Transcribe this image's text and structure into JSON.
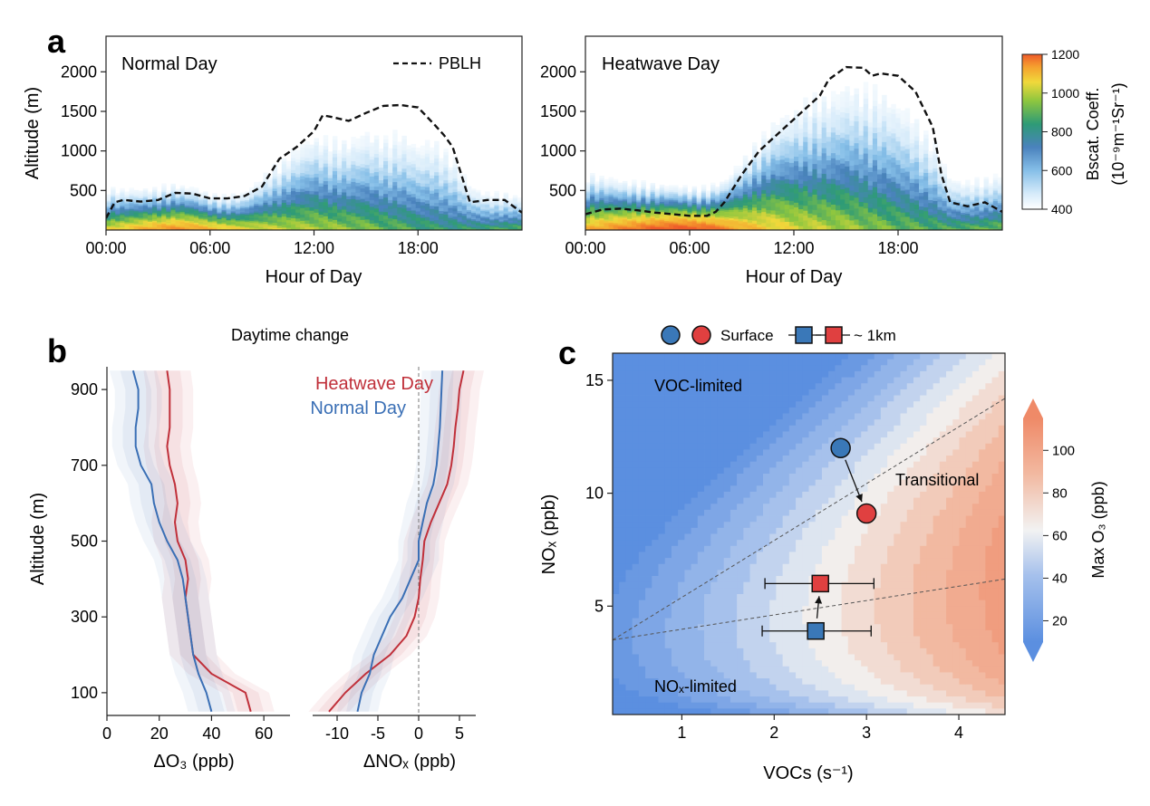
{
  "panel_labels": {
    "a": "a",
    "b": "b",
    "c": "c"
  },
  "colors": {
    "heatwave": "#c0303a",
    "normal": "#3a6fb5",
    "surface_blue": "#3a78b8",
    "surface_red": "#e04040"
  },
  "chart_data": [
    {
      "id": "a_normal",
      "type": "heatmap",
      "panel_text": "Normal Day",
      "xlabel": "Hour of Day",
      "ylabel": "Altitude (m)",
      "xlim": [
        0,
        24
      ],
      "ylim": [
        0,
        2450
      ],
      "x_ticks": [
        0,
        6,
        12,
        18
      ],
      "x_tick_labels": [
        "00:00",
        "06:00",
        "12:00",
        "18:00"
      ],
      "y_ticks": [
        500,
        1000,
        1500,
        2000
      ],
      "y_tick_labels": [
        "500",
        "1000",
        "1500",
        "2000"
      ],
      "legend": [
        {
          "label": "PBLH",
          "style": "dashed"
        }
      ],
      "legend_position": "top-right",
      "pblh": {
        "x": [
          0,
          0.5,
          1,
          2,
          3,
          4,
          5,
          6,
          7,
          8,
          9,
          10,
          11,
          12,
          12.5,
          13,
          14,
          15,
          16,
          17,
          18,
          19,
          19.5,
          20,
          20.5,
          21,
          22,
          23,
          24
        ],
        "y": [
          150,
          350,
          380,
          360,
          380,
          470,
          460,
          400,
          400,
          430,
          550,
          900,
          1050,
          1250,
          1450,
          1430,
          1380,
          1480,
          1570,
          1580,
          1550,
          1320,
          1200,
          1050,
          700,
          350,
          380,
          380,
          220
        ]
      },
      "backscatter_band": {
        "hour": [
          0,
          1,
          2,
          3,
          4,
          5,
          6,
          7,
          8,
          9,
          10,
          11,
          12,
          13,
          14,
          15,
          16,
          17,
          18,
          19,
          20,
          21,
          22,
          23,
          24
        ],
        "top_altitude": [
          560,
          540,
          540,
          560,
          600,
          560,
          480,
          460,
          500,
          700,
          900,
          1100,
          1250,
          1200,
          1200,
          1300,
          1250,
          1300,
          1150,
          1200,
          1000,
          600,
          500,
          500,
          450
        ],
        "surface_intensity": [
          850,
          900,
          950,
          1000,
          1020,
          1000,
          950,
          900,
          860,
          820,
          800,
          780,
          770,
          760,
          740,
          720,
          700,
          680,
          660,
          640,
          640,
          650,
          660,
          680,
          700
        ]
      }
    },
    {
      "id": "a_heatwave",
      "type": "heatmap",
      "panel_text": "Heatwave Day",
      "xlabel": "Hour of Day",
      "ylabel": "",
      "xlim": [
        0,
        24
      ],
      "ylim": [
        0,
        2450
      ],
      "x_ticks": [
        0,
        6,
        12,
        18
      ],
      "x_tick_labels": [
        "00:00",
        "06:00",
        "12:00",
        "18:00"
      ],
      "y_ticks": [
        500,
        1000,
        1500,
        2000
      ],
      "y_tick_labels": [
        "500",
        "1000",
        "1500",
        "2000"
      ],
      "pblh": {
        "x": [
          0,
          1,
          2,
          3,
          4,
          5,
          6,
          7,
          7.5,
          8,
          9,
          10,
          11,
          12,
          13,
          13.5,
          14,
          15,
          16,
          16.5,
          17,
          18,
          19,
          20,
          20.5,
          21,
          22,
          23,
          24
        ],
        "y": [
          200,
          260,
          270,
          250,
          220,
          200,
          180,
          180,
          230,
          350,
          700,
          1000,
          1200,
          1400,
          1600,
          1700,
          1900,
          2060,
          2050,
          1950,
          1980,
          1950,
          1750,
          1300,
          700,
          350,
          300,
          350,
          230
        ]
      },
      "colorbar": {
        "label": "Bscat. Coeff.",
        "units": "(10⁻⁹m⁻¹Sr⁻¹)",
        "min": 400,
        "max": 1200,
        "ticks": [
          400,
          600,
          800,
          1000,
          1200
        ],
        "tick_labels": [
          "400",
          "600",
          "800",
          "1000",
          "1200"
        ]
      },
      "backscatter_band": {
        "hour": [
          0,
          1,
          2,
          3,
          4,
          5,
          6,
          7,
          8,
          9,
          10,
          11,
          12,
          13,
          14,
          15,
          16,
          17,
          18,
          19,
          20,
          21,
          22,
          23,
          24
        ],
        "top_altitude": [
          750,
          700,
          650,
          620,
          600,
          580,
          560,
          560,
          650,
          900,
          1200,
          1450,
          1600,
          1750,
          1800,
          1900,
          1900,
          1850,
          1700,
          1500,
          1200,
          700,
          650,
          700,
          750
        ],
        "surface_intensity": [
          950,
          1000,
          1050,
          1100,
          1150,
          1180,
          1180,
          1150,
          1050,
          950,
          900,
          860,
          820,
          800,
          780,
          760,
          740,
          720,
          700,
          690,
          680,
          680,
          690,
          700,
          720
        ]
      }
    },
    {
      "id": "b_o3",
      "type": "line",
      "title": "Daytime change",
      "xlabel": "ΔO₃ (ppb)",
      "ylabel": "Altitude (m)",
      "xlim": [
        0,
        70
      ],
      "ylim": [
        40,
        960
      ],
      "x_ticks": [
        0,
        20,
        40,
        60
      ],
      "x_tick_labels": [
        "0",
        "20",
        "40",
        "60"
      ],
      "y_ticks": [
        100,
        300,
        500,
        700,
        900
      ],
      "y_tick_labels": [
        "100",
        "300",
        "500",
        "700",
        "900"
      ],
      "legend": [
        "Heatwave Day",
        "Normal Day"
      ],
      "legend_position": "top-right",
      "altitude": [
        50,
        100,
        150,
        200,
        250,
        300,
        350,
        400,
        450,
        500,
        550,
        600,
        650,
        700,
        750,
        800,
        850,
        900,
        950
      ],
      "series": [
        {
          "name": "Heatwave Day",
          "color": "heatwave",
          "values": [
            55,
            53,
            40,
            33,
            32,
            31,
            30,
            31,
            30,
            27,
            26,
            27,
            26,
            24,
            23,
            24,
            24,
            24,
            23
          ],
          "spread": 9
        },
        {
          "name": "Normal Day",
          "color": "normal",
          "values": [
            40,
            38,
            35,
            33,
            32,
            31,
            30,
            29,
            27,
            23,
            20,
            18,
            17,
            13,
            11,
            11,
            12,
            12,
            10
          ],
          "spread": 9
        }
      ]
    },
    {
      "id": "b_nox",
      "type": "line",
      "xlabel": "ΔNOₓ (ppb)",
      "ylabel": "",
      "xlim": [
        -13,
        7
      ],
      "ylim": [
        40,
        960
      ],
      "x_ticks": [
        -10,
        -5,
        0,
        5
      ],
      "x_tick_labels": [
        "-10",
        "-5",
        "0",
        "5"
      ],
      "reference_line_x": 0,
      "altitude": [
        50,
        100,
        150,
        200,
        250,
        300,
        350,
        400,
        450,
        500,
        550,
        600,
        650,
        700,
        750,
        800,
        850,
        900,
        950
      ],
      "series": [
        {
          "name": "Heatwave Day",
          "color": "heatwave",
          "values": [
            -11,
            -9,
            -6.5,
            -3.5,
            -1.5,
            -0.5,
            0,
            0.2,
            0.5,
            0.7,
            1.5,
            2.5,
            3.5,
            4,
            4.3,
            4.5,
            4.8,
            5,
            5.5
          ],
          "spread": 2.5
        },
        {
          "name": "Normal Day",
          "color": "normal",
          "values": [
            -7.5,
            -7,
            -6,
            -5.5,
            -4.5,
            -3.5,
            -2,
            -1,
            0,
            0,
            0.5,
            1,
            1.8,
            2.2,
            2.4,
            2.6,
            2.7,
            2.8,
            2.9
          ],
          "spread": 2.5
        }
      ]
    },
    {
      "id": "c",
      "type": "scatter",
      "xlabel": "VOCs (s⁻¹)",
      "ylabel": "NOₓ (ppb)",
      "xlim": [
        0.25,
        4.5
      ],
      "ylim": [
        0.2,
        16.2
      ],
      "x_ticks": [
        1,
        2,
        3,
        4
      ],
      "x_tick_labels": [
        "1",
        "2",
        "3",
        "4"
      ],
      "y_ticks": [
        5,
        10,
        15
      ],
      "y_tick_labels": [
        "5",
        "10",
        "15"
      ],
      "legend": [
        "Surface",
        "~ 1km"
      ],
      "legend_position": "top",
      "region_labels": [
        "VOC-limited",
        "Transitional",
        "NOₓ-limited"
      ],
      "ridge_lines": [
        {
          "x": [
            0.25,
            4.5
          ],
          "y": [
            3.5,
            14.2
          ]
        },
        {
          "x": [
            0.25,
            4.5
          ],
          "y": [
            3.5,
            6.2
          ]
        }
      ],
      "colorbar": {
        "label": "Max O₃ (ppb)",
        "min": 10,
        "max": 115,
        "ticks": [
          20,
          40,
          60,
          80,
          100
        ],
        "tick_labels": [
          "20",
          "40",
          "60",
          "80",
          "100"
        ]
      },
      "points": [
        {
          "group": "Surface",
          "day": "Normal Day",
          "marker": "circle",
          "x": 2.72,
          "y": 12.0,
          "color": "surface_blue"
        },
        {
          "group": "Surface",
          "day": "Heatwave Day",
          "marker": "circle",
          "x": 3.0,
          "y": 9.1,
          "color": "surface_red"
        },
        {
          "group": "~ 1km",
          "day": "Heatwave Day",
          "marker": "square",
          "x": 2.5,
          "y": 6.0,
          "xerr": [
            1.9,
            3.08
          ],
          "color": "surface_red"
        },
        {
          "group": "~ 1km",
          "day": "Normal Day",
          "marker": "square",
          "x": 2.45,
          "y": 3.9,
          "xerr": [
            1.87,
            3.05
          ],
          "color": "surface_blue"
        }
      ]
    }
  ]
}
